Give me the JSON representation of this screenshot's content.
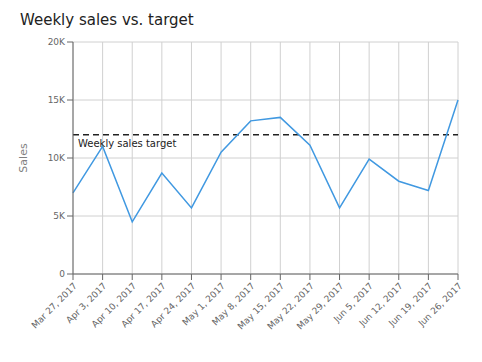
{
  "chart_data": {
    "type": "line",
    "title": "Weekly sales vs. target",
    "y_label": "Sales",
    "categories": [
      "Mar 27, 2017",
      "Apr 3, 2017",
      "Apr 10, 2017",
      "Apr 17, 2017",
      "Apr 24, 2017",
      "May 1, 2017",
      "May 8, 2017",
      "May 15, 2017",
      "May 22, 2017",
      "May 29, 2017",
      "Jun 5, 2017",
      "Jun 12, 2017",
      "Jun 19, 2017",
      "Jun 26, 2017"
    ],
    "values": [
      7000,
      11000,
      4500,
      8700,
      5700,
      10500,
      13200,
      13500,
      11100,
      5700,
      9900,
      8000,
      7200,
      15000
    ],
    "color": "#4199e1",
    "ylim": [
      0,
      20000
    ],
    "yticks": [
      0,
      {
        "value": 5000,
        "label": "5K"
      },
      {
        "value": 10000,
        "label": "10K"
      },
      {
        "value": 15000,
        "label": "15K"
      },
      {
        "value": 20000,
        "label": "20K"
      }
    ],
    "grid": true,
    "reference_lines": [
      {
        "value": 12000,
        "label": "Weekly sales target",
        "color": "#222222",
        "line_style": "dashed"
      }
    ]
  }
}
